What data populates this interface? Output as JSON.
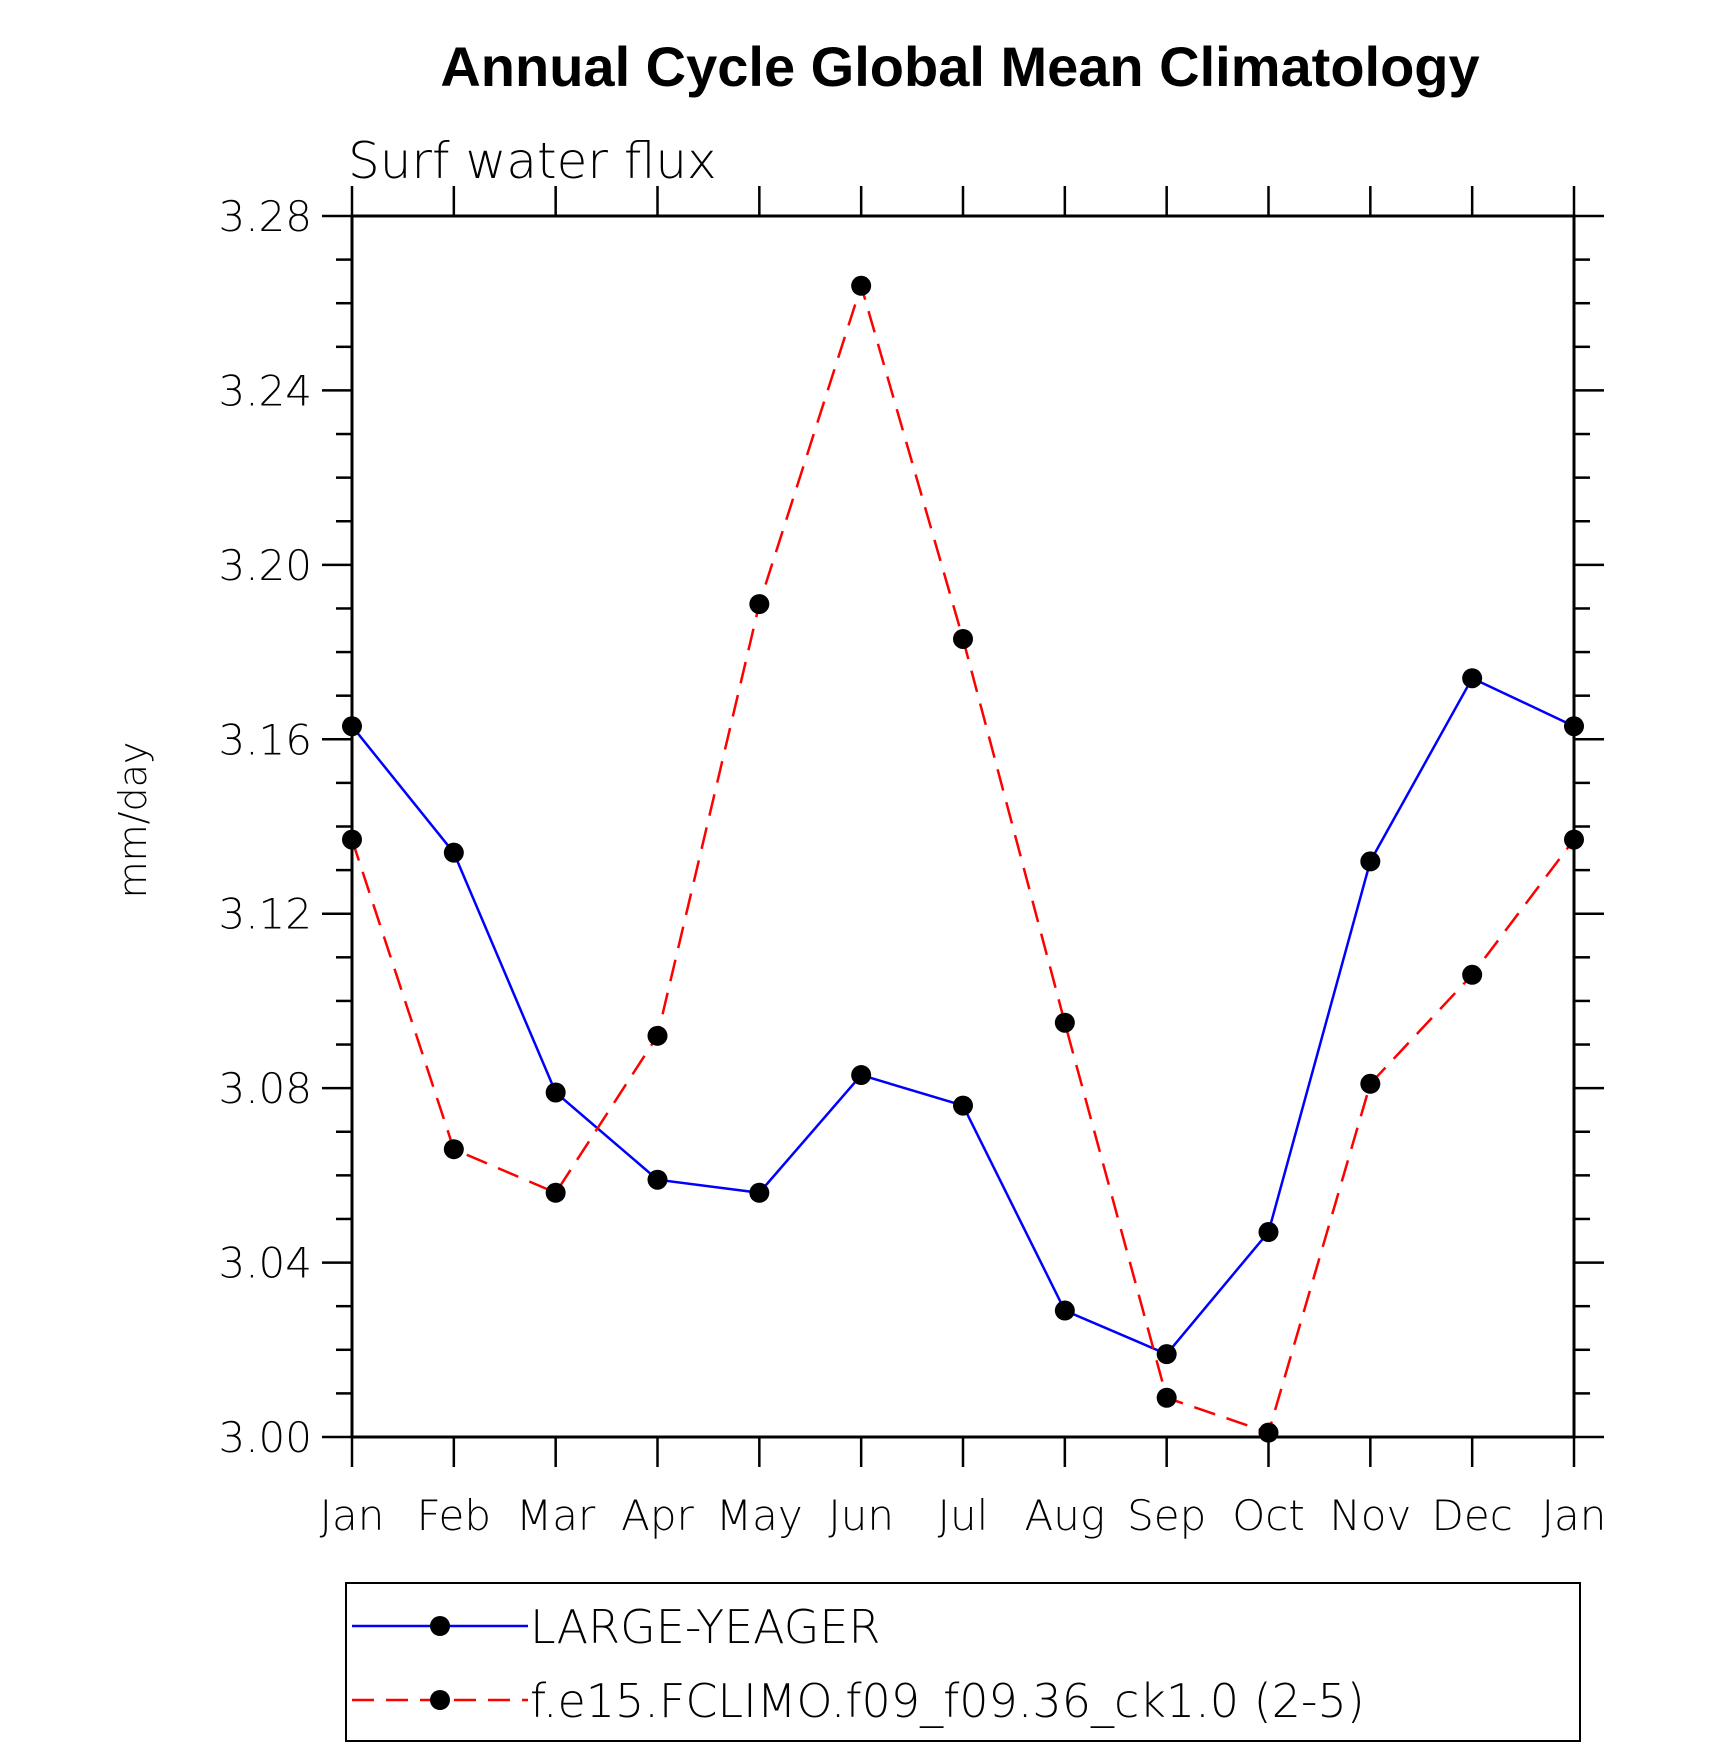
{
  "chart_data": {
    "type": "line",
    "title": "Annual Cycle Global Mean Climatology",
    "subtitle": "Surf water flux",
    "xlabel": "",
    "ylabel": "mm/day",
    "categories": [
      "Jan",
      "Feb",
      "Mar",
      "Apr",
      "May",
      "Jun",
      "Jul",
      "Aug",
      "Sep",
      "Oct",
      "Nov",
      "Dec",
      "Jan"
    ],
    "ylim": [
      3.0,
      3.28
    ],
    "yticks": [
      "3.00",
      "3.04",
      "3.08",
      "3.12",
      "3.16",
      "3.20",
      "3.24",
      "3.28"
    ],
    "series": [
      {
        "name": "LARGE-YEAGER",
        "color": "#0000ff",
        "dash": "solid",
        "values": [
          3.163,
          3.134,
          3.079,
          3.059,
          3.056,
          3.083,
          3.076,
          3.029,
          3.019,
          3.047,
          3.132,
          3.174,
          3.163
        ]
      },
      {
        "name": "f.e15.FCLIMO.f09_f09.36_ck1.0 (2-5)",
        "color": "#ff0000",
        "dash": "dashed",
        "values": [
          3.137,
          3.066,
          3.056,
          3.092,
          3.191,
          3.264,
          3.183,
          3.095,
          3.009,
          3.001,
          3.081,
          3.106,
          3.137
        ]
      }
    ],
    "legend": "bottom"
  }
}
